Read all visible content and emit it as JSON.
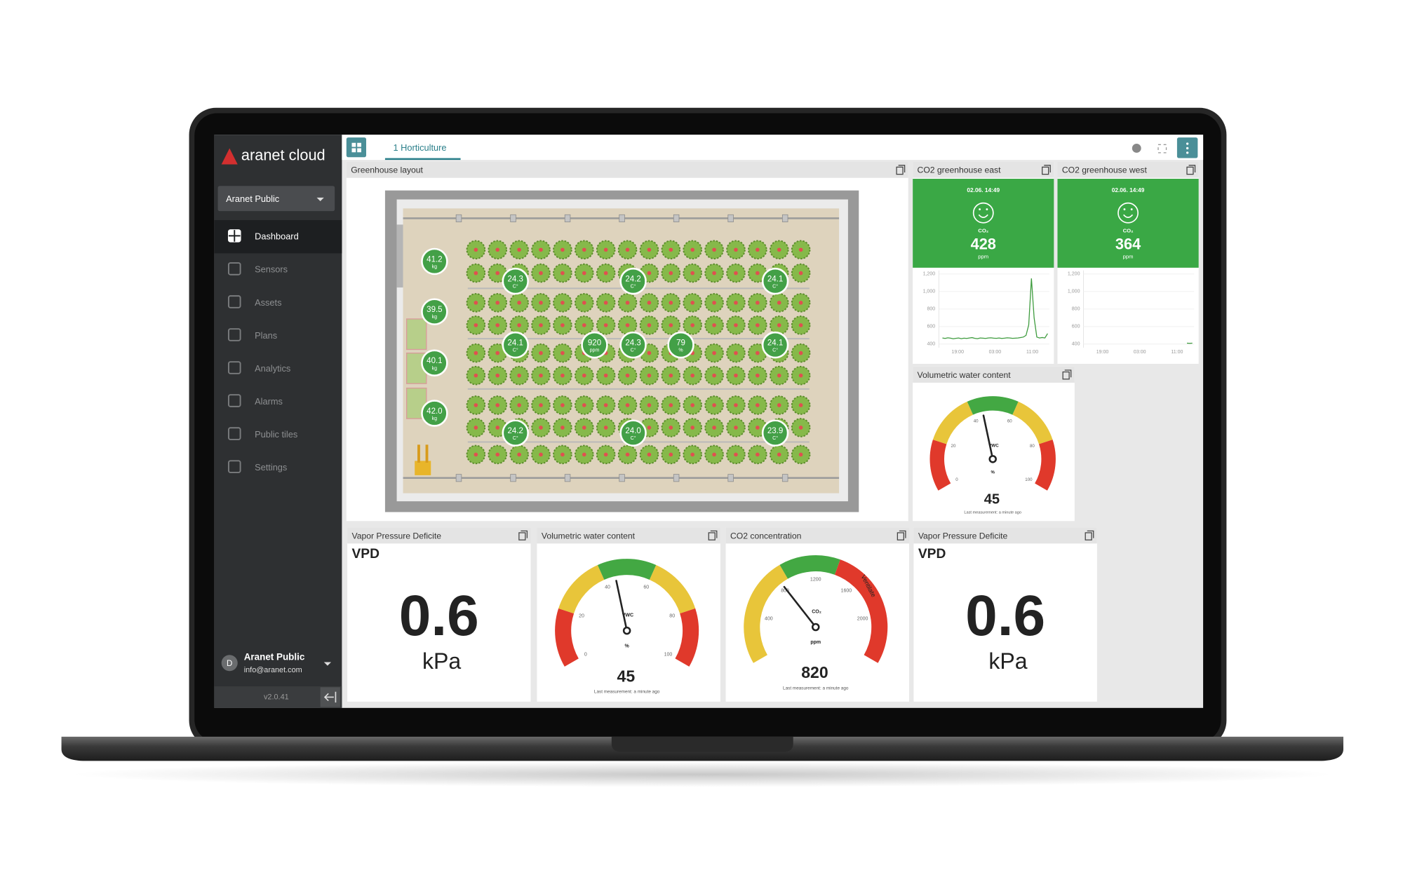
{
  "sidebar": {
    "brand": "aranet cloud",
    "organization": "Aranet Public",
    "nav": [
      "Dashboard",
      "Sensors",
      "Assets",
      "Plans",
      "Analytics",
      "Alarms",
      "Public tiles",
      "Settings"
    ],
    "active_nav": 0,
    "user": {
      "initial": "D",
      "name": "Aranet Public",
      "email": "info@aranet.com"
    },
    "version": "v2.0.41"
  },
  "tab": "1 Horticulture",
  "greenhouse": {
    "title": "Greenhouse layout",
    "markers": [
      {
        "value": "41.2",
        "unit": "kg"
      },
      {
        "value": "39.5",
        "unit": "kg"
      },
      {
        "value": "40.1",
        "unit": "kg"
      },
      {
        "value": "42.0",
        "unit": "kg"
      },
      {
        "value": "24.3",
        "unit": "C°"
      },
      {
        "value": "24.2",
        "unit": "C°"
      },
      {
        "value": "24.1",
        "unit": "C°"
      },
      {
        "value": "24.1",
        "unit": "C°"
      },
      {
        "value": "920",
        "unit": "ppm"
      },
      {
        "value": "24.3",
        "unit": "C°"
      },
      {
        "value": "79",
        "unit": "%"
      },
      {
        "value": "24.1",
        "unit": "C°"
      },
      {
        "value": "24.2",
        "unit": "C°"
      },
      {
        "value": "24.0",
        "unit": "C°"
      },
      {
        "value": "23.9",
        "unit": "C°"
      }
    ]
  },
  "co2_tiles": [
    {
      "title": "CO2 greenhouse east",
      "time": "02.06. 14:49",
      "label": "CO₂",
      "value": 428,
      "unit": "ppm",
      "color": "#3aa845",
      "ylim": [
        400,
        1200
      ],
      "yticks": [
        {
          "value": 1200,
          "label": "1,200"
        },
        {
          "value": 1000,
          "label": "1,000"
        },
        800,
        600,
        400
      ],
      "xticks": [
        "19:00",
        "03:00",
        "11:00"
      ],
      "line_color": "#3d9b3d",
      "series": [
        470,
        465,
        472,
        468,
        460,
        466,
        470,
        462,
        468,
        465,
        470,
        474,
        466,
        462,
        470,
        468,
        465,
        470,
        472,
        468,
        466,
        470,
        465,
        468,
        472,
        470,
        466,
        468,
        470,
        475,
        480,
        500,
        620,
        1150,
        700,
        480,
        470,
        475,
        470,
        520
      ]
    },
    {
      "title": "CO2 greenhouse west",
      "time": "02.06. 14:49",
      "label": "CO₂",
      "value": 364,
      "unit": "ppm",
      "color": "#3aa845",
      "ylim": [
        400,
        1200
      ],
      "yticks": [
        {
          "value": 1200,
          "label": "1,200"
        },
        {
          "value": 1000,
          "label": "1,000"
        },
        800,
        600,
        400
      ],
      "xticks": [
        "19:00",
        "03:00",
        "11:00"
      ],
      "line_color": "#3d9b3d",
      "series": [
        null,
        null,
        null,
        null,
        null,
        null,
        null,
        null,
        null,
        null,
        null,
        null,
        null,
        null,
        null,
        null,
        null,
        null,
        null,
        null,
        null,
        null,
        null,
        null,
        null,
        null,
        null,
        null,
        null,
        null,
        null,
        null,
        null,
        null,
        null,
        null,
        null,
        410,
        408,
        410
      ]
    }
  ],
  "gauges": [
    {
      "title": "Volumetric water content",
      "label": "VWC",
      "value": 45,
      "unit": "%",
      "lim": [
        0,
        100
      ],
      "ticks": [
        0,
        20,
        40,
        60,
        80,
        100
      ],
      "zones": [
        {
          "from": 0,
          "to": 20,
          "color": "#e0392b"
        },
        {
          "from": 20,
          "to": 40,
          "color": "#e8c53a"
        },
        {
          "from": 40,
          "to": 60,
          "color": "#43a843"
        },
        {
          "from": 60,
          "to": 80,
          "color": "#e8c53a"
        },
        {
          "from": 80,
          "to": 100,
          "color": "#e0392b"
        }
      ],
      "footer": "Last measurement: a minute ago"
    },
    {
      "title": "Volumetric water content",
      "label": "VWC",
      "value": 45,
      "unit": "%",
      "lim": [
        0,
        100
      ],
      "ticks": [
        0,
        20,
        40,
        60,
        80,
        100
      ],
      "zones": [
        {
          "from": 0,
          "to": 20,
          "color": "#e0392b"
        },
        {
          "from": 20,
          "to": 40,
          "color": "#e8c53a"
        },
        {
          "from": 40,
          "to": 60,
          "color": "#43a843"
        },
        {
          "from": 60,
          "to": 80,
          "color": "#e8c53a"
        },
        {
          "from": 80,
          "to": 100,
          "color": "#e0392b"
        }
      ],
      "footer": "Last measurement: a minute ago"
    },
    {
      "title": "CO2 concentration",
      "label": "CO₂",
      "value": 820,
      "unit": "ppm",
      "lim": [
        0,
        2400
      ],
      "ticks": [
        400,
        800,
        1200,
        1600,
        2000
      ],
      "zones": [
        {
          "from": 0,
          "to": 900,
          "color": "#e8c53a"
        },
        {
          "from": 900,
          "to": 1400,
          "color": "#43a843"
        },
        {
          "from": 1400,
          "to": 2400,
          "color": "#e0392b"
        }
      ],
      "annotation": "Ventilate",
      "footer": "Last measurement: a minute ago"
    }
  ],
  "vpd_tiles": [
    {
      "title": "Vapor Pressure Deficite",
      "label": "VPD",
      "value": 0.6,
      "unit": "kPa"
    },
    {
      "title": "Vapor Pressure Deficite",
      "label": "VPD",
      "value": 0.6,
      "unit": "kPa"
    }
  ]
}
